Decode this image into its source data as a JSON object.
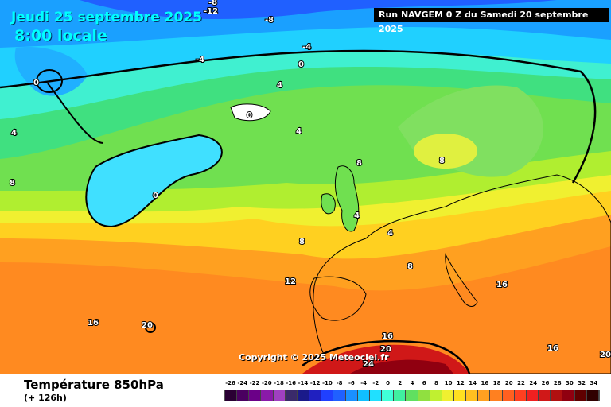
{
  "header": {
    "date": "Jeudi 25 septembre 2025",
    "time": "8:00 locale",
    "run": "Run NAVGEM 0 Z du Samedi 20 septembre 2025"
  },
  "copyright": "Copyright © 2025 Meteociel.fr",
  "footer": {
    "title": "Température 850hPa",
    "subtitle": "(+ 126h)"
  },
  "contour_labels": [
    "-12",
    "-8",
    "-8",
    "-4",
    "-4",
    "0",
    "0",
    "0",
    "0",
    "4",
    "4",
    "4",
    "4",
    "4",
    "8",
    "8",
    "8",
    "8",
    "8",
    "12",
    "16",
    "16",
    "16",
    "16",
    "20",
    "20",
    "20",
    "24"
  ],
  "scale": {
    "ticks": [
      "-26",
      "-24",
      "-22",
      "-20",
      "-18",
      "-16",
      "-14",
      "-12",
      "-10",
      "-8",
      "-6",
      "-4",
      "-2",
      "0",
      "2",
      "4",
      "6",
      "8",
      "10",
      "12",
      "14",
      "16",
      "18",
      "20",
      "22",
      "24",
      "26",
      "28",
      "30",
      "32",
      "34"
    ],
    "colors": [
      "#2a0033",
      "#4a0060",
      "#6b0088",
      "#8a1aa8",
      "#a040c0",
      "#3a2a6a",
      "#1a1a8a",
      "#2020c0",
      "#2040ff",
      "#2060ff",
      "#1a90ff",
      "#10c0ff",
      "#20e0ff",
      "#40ffd8",
      "#40f0a0",
      "#60e060",
      "#90e040",
      "#c0f030",
      "#f0f030",
      "#ffe020",
      "#ffc020",
      "#ffa020",
      "#ff8020",
      "#ff6020",
      "#ff4020",
      "#f02020",
      "#d01818",
      "#b01010",
      "#900010",
      "#600000",
      "#300000"
    ]
  }
}
